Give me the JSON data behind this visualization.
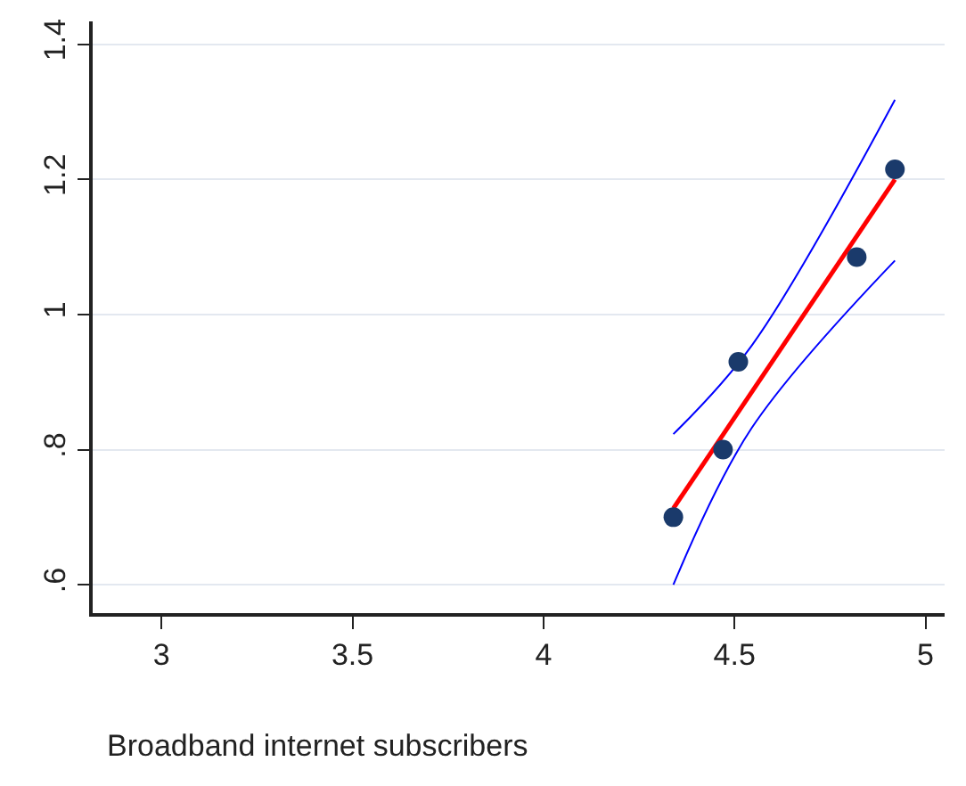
{
  "chart_data": {
    "type": "scatter",
    "xlabel": "Broadband internet subscribers",
    "xlim": [
      2.82,
      5.05
    ],
    "xticks": [
      3,
      3.5,
      4,
      4.5,
      5
    ],
    "ylim": [
      0.558,
      1.434
    ],
    "yticks": [
      {
        "value": 0.6,
        "label": ".6"
      },
      {
        "value": 0.8,
        "label": ".8"
      },
      1,
      1.2,
      1.4
    ],
    "grid": "y",
    "series": [
      {
        "type": "line",
        "color": "#0000ff",
        "x": [
          4.34,
          4.545,
          4.92
        ],
        "values": [
          0.823,
          0.954,
          1.318
        ],
        "line_style": "solid"
      },
      {
        "type": "line",
        "color": "#0000ff",
        "x": [
          4.34,
          4.545,
          4.92
        ],
        "values": [
          0.6,
          0.832,
          1.08
        ],
        "line_style": "solid"
      },
      {
        "type": "line",
        "color": "#ff0000",
        "x": [
          4.34,
          4.92
        ],
        "values": [
          0.713,
          1.2
        ],
        "line_style": "solid"
      },
      {
        "color": "#1a3a6b",
        "marker": "circle",
        "x": [
          4.34,
          4.47,
          4.51,
          4.82,
          4.92
        ],
        "values": [
          0.7,
          0.8,
          0.93,
          1.085,
          1.215
        ]
      }
    ]
  }
}
